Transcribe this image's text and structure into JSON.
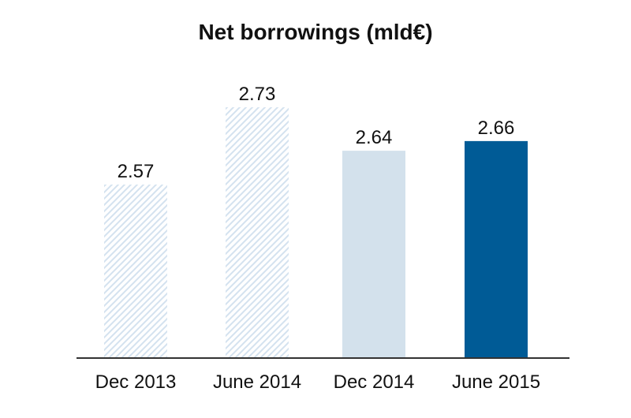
{
  "chart_data": {
    "type": "bar",
    "title": "Net borrowings (mld€)",
    "categories": [
      "Dec 2013",
      "June 2014",
      "Dec 2014",
      "June 2015"
    ],
    "values": [
      2.57,
      2.73,
      2.64,
      2.66
    ],
    "value_labels": [
      "2.57",
      "2.73",
      "2.64",
      "2.66"
    ],
    "bar_styles": [
      "hatched-light-blue",
      "hatched-light-blue",
      "light-blue",
      "dark-blue"
    ],
    "colors": {
      "hatch": "#d4e2ef",
      "light": "#d3e1ec",
      "dark": "#005b96",
      "axis": "#333333",
      "text": "#111111"
    },
    "grid": false,
    "legend": "none"
  }
}
